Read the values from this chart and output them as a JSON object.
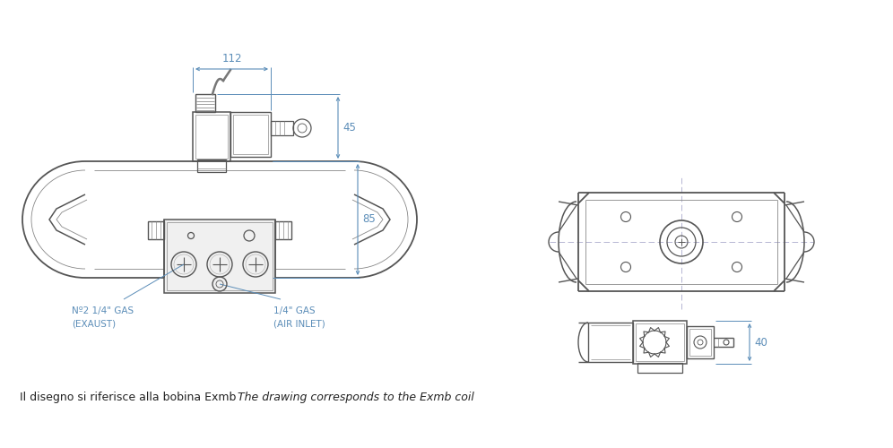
{
  "bg_color": "#ffffff",
  "line_color": "#555555",
  "dim_color": "#5b8db8",
  "label_color": "#5b8db8",
  "text_color": "#222222",
  "bottom_text_left": "Il disegno si riferisce alla bobina Exmb",
  "bottom_text_right": "The drawing corresponds to the Exmb coil",
  "dim_112": "112",
  "dim_45": "45",
  "dim_85": "85",
  "dim_40": "40",
  "label_exhaust": "Nº2 1/4\" GAS\n(EXAUST)",
  "label_air_inlet": "1/4\" GAS\n(AIR INLET)"
}
